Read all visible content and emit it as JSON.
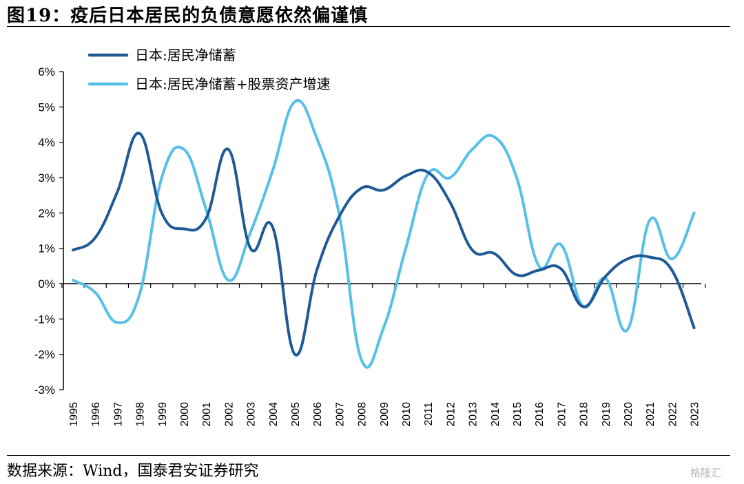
{
  "title": "图19：疫后日本居民的负债意愿依然偏谨慎",
  "source": "数据来源：Wind，国泰君安证券研究",
  "watermark": "格隆汇",
  "chart_data": {
    "type": "line",
    "xlabel": "",
    "ylabel": "",
    "ylim": [
      -3,
      6
    ],
    "yticks": [
      "-3%",
      "-2%",
      "-1%",
      "0%",
      "1%",
      "2%",
      "3%",
      "4%",
      "5%",
      "6%"
    ],
    "x": [
      "1995",
      "1996",
      "1997",
      "1998",
      "1999",
      "2000",
      "2001",
      "2002",
      "2003",
      "2004",
      "2005",
      "2006",
      "2007",
      "2008",
      "2009",
      "2010",
      "2011",
      "2012",
      "2013",
      "2014",
      "2015",
      "2016",
      "2017",
      "2018",
      "2019",
      "2020",
      "2021",
      "2022",
      "2023"
    ],
    "grid": false,
    "legend_position": "top-left",
    "series": [
      {
        "name": "日本:居民净储蓄",
        "color": "#1f5a96",
        "values": [
          0.95,
          1.3,
          2.6,
          4.25,
          2.0,
          1.55,
          1.85,
          3.8,
          1.0,
          1.6,
          -2.0,
          0.4,
          1.9,
          2.7,
          2.65,
          3.05,
          3.15,
          2.3,
          0.95,
          0.85,
          0.25,
          0.38,
          0.42,
          -0.65,
          0.2,
          0.7,
          0.75,
          0.38,
          -1.25
        ]
      },
      {
        "name": "日本:居民净储蓄+股票资产增速",
        "color": "#58bfe8",
        "values": [
          0.1,
          -0.25,
          -1.1,
          -0.3,
          3.0,
          3.8,
          2.1,
          0.1,
          1.45,
          3.2,
          5.15,
          4.1,
          1.95,
          -2.15,
          -1.25,
          1.0,
          3.1,
          3.0,
          3.8,
          4.15,
          3.0,
          0.5,
          1.1,
          -0.65,
          0.15,
          -1.3,
          1.8,
          0.7,
          2.0
        ]
      }
    ]
  }
}
